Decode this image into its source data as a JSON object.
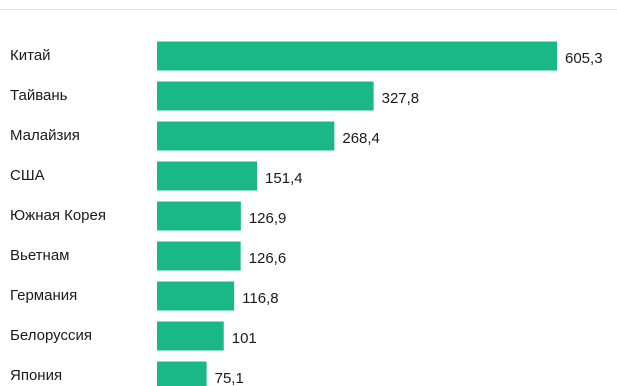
{
  "chart_data": {
    "type": "bar",
    "orientation": "horizontal",
    "categories": [
      "Китай",
      "Тайвань",
      "Малайзия",
      "США",
      "Южная Корея",
      "Вьетнам",
      "Германия",
      "Белоруссия",
      "Япония"
    ],
    "values": [
      605.3,
      327.8,
      268.4,
      151.4,
      126.9,
      126.6,
      116.8,
      101,
      75.1
    ],
    "value_labels": [
      "605,3",
      "327,8",
      "268,4",
      "151,4",
      "126,9",
      "126,6",
      "116,8",
      "101",
      "75,1"
    ],
    "bar_color": "#19b886",
    "xlim": [
      0,
      605.3
    ],
    "grid": false,
    "legend": "none"
  }
}
